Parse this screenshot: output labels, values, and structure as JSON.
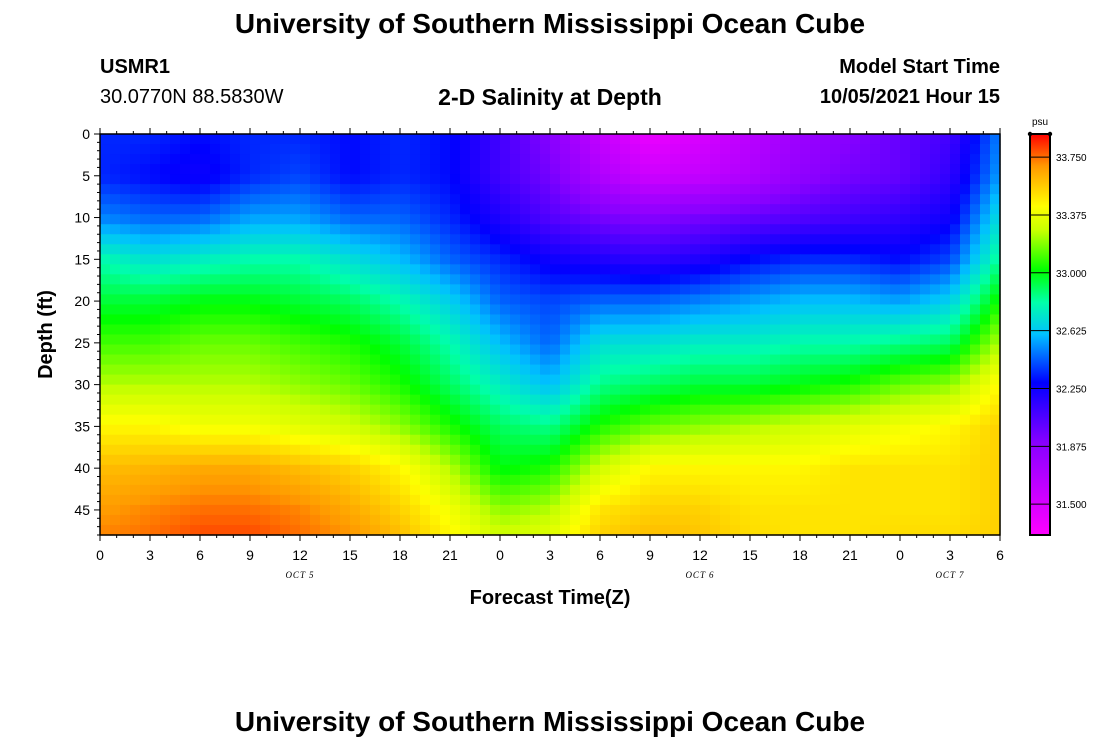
{
  "header": {
    "title": "University of Southern Mississippi Ocean Cube",
    "station_id": "USMR1",
    "station_coords": "30.0770N  88.5830W",
    "subtitle": "2-D Salinity at Depth",
    "start_label": "Model Start Time",
    "start_value": "10/05/2021 Hour 15"
  },
  "footer": {
    "title": "University of Southern Mississippi Ocean Cube"
  },
  "chart_data": {
    "type": "heatmap",
    "title": "2-D Salinity at Depth",
    "xlabel": "Forecast Time(Z)",
    "ylabel": "Depth (ft)",
    "x_tick_labels": [
      "0",
      "3",
      "6",
      "9",
      "12",
      "15",
      "18",
      "21",
      "0",
      "3",
      "6",
      "9",
      "12",
      "15",
      "18",
      "21",
      "0",
      "3",
      "6"
    ],
    "x_date_labels": [
      "OCT 5",
      "OCT 6",
      "OCT 7"
    ],
    "x_range_hours": [
      0,
      54
    ],
    "y_tick_labels": [
      "0",
      "5",
      "10",
      "15",
      "20",
      "25",
      "30",
      "35",
      "40",
      "45"
    ],
    "y_range_ft": [
      0,
      48
    ],
    "colorbar": {
      "unit": "psu",
      "tick_labels": [
        "33.750",
        "33.375",
        "33.000",
        "32.625",
        "32.250",
        "31.875",
        "31.500"
      ],
      "range": [
        31.3,
        33.9
      ]
    },
    "depth_grid_ft": [
      0,
      5,
      10,
      15,
      20,
      25,
      30,
      35,
      40,
      45,
      48
    ],
    "time_grid_hours": [
      0,
      3,
      6,
      9,
      12,
      15,
      18,
      21,
      24,
      27,
      30,
      33,
      36,
      39,
      42,
      45,
      48,
      51,
      54
    ],
    "salinity_psu": [
      [
        32.35,
        32.35,
        32.3,
        32.35,
        32.35,
        32.3,
        32.35,
        32.3,
        32.1,
        31.9,
        31.6,
        31.4,
        31.5,
        31.65,
        31.8,
        31.9,
        32.0,
        32.1,
        32.5
      ],
      [
        32.35,
        32.3,
        32.25,
        32.35,
        32.4,
        32.3,
        32.35,
        32.3,
        32.1,
        31.95,
        31.7,
        31.55,
        31.6,
        31.7,
        31.85,
        31.95,
        32.0,
        32.15,
        32.55
      ],
      [
        32.5,
        32.45,
        32.45,
        32.55,
        32.55,
        32.45,
        32.45,
        32.35,
        32.2,
        32.05,
        31.95,
        31.9,
        31.95,
        32.0,
        32.05,
        32.1,
        32.15,
        32.25,
        32.7
      ],
      [
        32.8,
        32.7,
        32.75,
        32.8,
        32.8,
        32.7,
        32.6,
        32.45,
        32.35,
        32.25,
        32.2,
        32.15,
        32.2,
        32.3,
        32.35,
        32.35,
        32.3,
        32.4,
        32.85
      ],
      [
        32.95,
        32.95,
        33.0,
        33.0,
        32.95,
        32.9,
        32.8,
        32.65,
        32.45,
        32.4,
        32.45,
        32.45,
        32.5,
        32.55,
        32.6,
        32.6,
        32.55,
        32.65,
        33.05
      ],
      [
        33.1,
        33.1,
        33.15,
        33.15,
        33.1,
        33.05,
        32.95,
        32.8,
        32.6,
        32.45,
        32.7,
        32.7,
        32.75,
        32.75,
        32.8,
        32.8,
        32.85,
        32.9,
        33.25
      ],
      [
        33.25,
        33.25,
        33.25,
        33.25,
        33.2,
        33.15,
        33.05,
        32.9,
        32.75,
        32.6,
        32.85,
        32.9,
        32.95,
        32.95,
        33.0,
        33.05,
        33.15,
        33.2,
        33.45
      ],
      [
        33.45,
        33.45,
        33.4,
        33.4,
        33.35,
        33.3,
        33.2,
        33.05,
        32.9,
        32.85,
        33.05,
        33.15,
        33.2,
        33.25,
        33.3,
        33.35,
        33.4,
        33.45,
        33.55
      ],
      [
        33.6,
        33.62,
        33.65,
        33.65,
        33.6,
        33.55,
        33.45,
        33.25,
        33.0,
        33.05,
        33.3,
        33.45,
        33.45,
        33.45,
        33.45,
        33.5,
        33.5,
        33.5,
        33.55
      ],
      [
        33.68,
        33.72,
        33.75,
        33.75,
        33.72,
        33.65,
        33.55,
        33.4,
        33.2,
        33.25,
        33.5,
        33.55,
        33.55,
        33.5,
        33.5,
        33.5,
        33.5,
        33.5,
        33.55
      ],
      [
        33.72,
        33.75,
        33.8,
        33.8,
        33.75,
        33.7,
        33.6,
        33.45,
        33.3,
        33.35,
        33.55,
        33.6,
        33.58,
        33.52,
        33.5,
        33.5,
        33.52,
        33.52,
        33.55
      ]
    ]
  }
}
